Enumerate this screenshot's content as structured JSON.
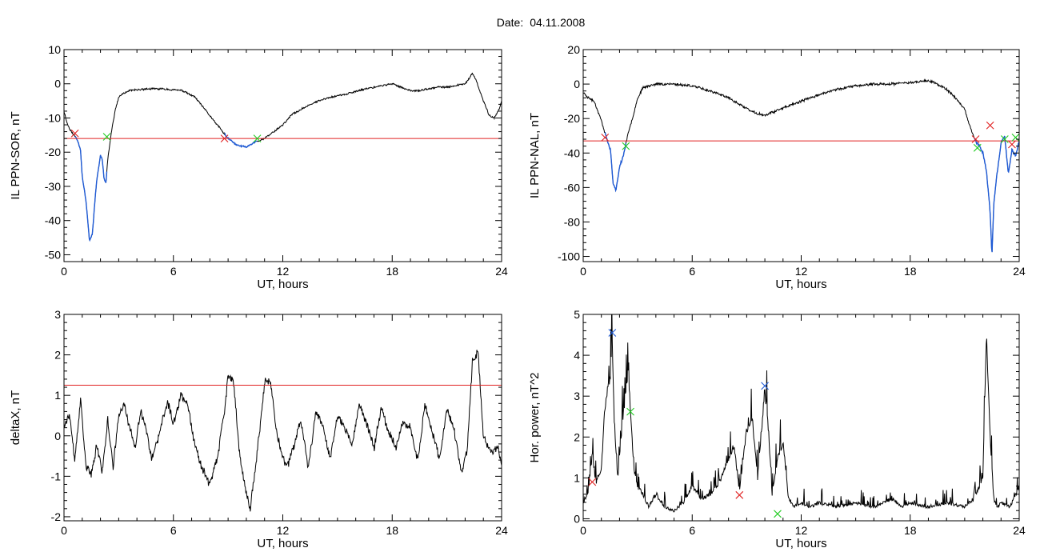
{
  "figure": {
    "date_label": "Date:",
    "date_value": "04.11.2008"
  },
  "colors": {
    "curve": "#000000",
    "highlight": "#1f5bd6",
    "threshold": "#e02020",
    "marker_red": "#e02020",
    "marker_green": "#22cc22",
    "marker_blue": "#1f5bd6"
  },
  "chart_data": [
    {
      "type": "line",
      "title": "",
      "xlabel": "UT, hours",
      "ylabel": "IL PPN-SOR, nT",
      "xlim": [
        0,
        24
      ],
      "ylim": [
        -52,
        10
      ],
      "xticks": [
        0,
        6,
        12,
        18,
        24
      ],
      "yticks": [
        -50,
        -40,
        -30,
        -20,
        -10,
        0,
        10
      ],
      "grid": false,
      "threshold": -16,
      "seed": 11,
      "noise": 0.45,
      "series": [
        {
          "values_x": [
            0,
            0.2,
            0.4,
            0.7,
            0.9,
            1.0,
            1.2,
            1.4,
            1.55,
            1.7,
            1.8,
            2.0,
            2.1,
            2.2,
            2.3,
            2.4,
            2.6,
            2.8,
            3.0,
            3.2,
            3.6,
            4.5,
            5.5,
            6.5,
            7.2,
            7.8,
            8.4,
            9.0,
            9.5,
            10.0,
            10.5,
            11.0,
            11.5,
            12.0,
            12.5,
            13.5,
            14.5,
            15.5,
            16.5,
            17.5,
            18.0,
            18.5,
            19.0,
            19.5,
            20.0,
            20.5,
            21.0,
            21.5,
            22.0,
            22.4,
            22.6,
            22.8,
            23.0,
            23.3,
            23.6,
            23.9,
            24.0
          ],
          "values_y": [
            -8,
            -12,
            -14,
            -16,
            -19,
            -27,
            -34,
            -46,
            -44,
            -34,
            -28,
            -21,
            -22,
            -28,
            -29,
            -22,
            -14,
            -8,
            -4,
            -3,
            -2,
            -1.5,
            -1.5,
            -2,
            -4,
            -8,
            -12,
            -16,
            -18,
            -18.5,
            -17,
            -16,
            -14,
            -12,
            -9,
            -6,
            -4,
            -3,
            -1.5,
            -0.5,
            0,
            -1,
            -2,
            -2,
            -1.5,
            -1,
            -1,
            -0.5,
            0,
            3,
            1,
            -2,
            -5,
            -9,
            -10,
            -7,
            -5
          ]
        }
      ],
      "highlight_ranges": [
        [
          0.6,
          2.35
        ],
        [
          8.8,
          10.6
        ]
      ],
      "markers": [
        {
          "x": 0.6,
          "y": -14.5,
          "color": "red"
        },
        {
          "x": 2.35,
          "y": -15.5,
          "color": "green"
        },
        {
          "x": 8.8,
          "y": -16,
          "color": "red"
        },
        {
          "x": 10.6,
          "y": -16,
          "color": "green"
        }
      ]
    },
    {
      "type": "line",
      "title": "",
      "xlabel": "UT, hours",
      "ylabel": "IL PPN-NAL, nT",
      "xlim": [
        0,
        24
      ],
      "ylim": [
        -103,
        20
      ],
      "xticks": [
        0,
        6,
        12,
        18,
        24
      ],
      "yticks": [
        -100,
        -80,
        -60,
        -40,
        -20,
        0,
        20
      ],
      "grid": false,
      "threshold": -33,
      "seed": 23,
      "noise": 1.2,
      "series": [
        {
          "values_x": [
            0,
            0.3,
            0.6,
            0.9,
            1.1,
            1.3,
            1.5,
            1.65,
            1.8,
            2.0,
            2.2,
            2.4,
            2.7,
            3.0,
            3.3,
            4.0,
            5.0,
            6.0,
            7.0,
            8.0,
            8.8,
            9.5,
            10.0,
            11.0,
            12.0,
            13.0,
            14.0,
            15.0,
            16.0,
            17.0,
            18.0,
            19.0,
            19.5,
            20.0,
            20.5,
            20.8,
            21.0,
            21.3,
            21.6,
            21.8,
            22.0,
            22.2,
            22.4,
            22.5,
            22.6,
            22.8,
            23.0,
            23.2,
            23.4,
            23.6,
            23.8,
            24.0
          ],
          "values_y": [
            -5,
            -8,
            -10,
            -18,
            -25,
            -32,
            -38,
            -58,
            -62,
            -48,
            -42,
            -32,
            -20,
            -8,
            -2,
            0,
            0,
            -1,
            -4,
            -8,
            -13,
            -17,
            -18,
            -14,
            -10,
            -6,
            -3,
            -1,
            0,
            0,
            1,
            2,
            0,
            -3,
            -8,
            -12,
            -15,
            -25,
            -33,
            -36,
            -40,
            -50,
            -75,
            -100,
            -70,
            -50,
            -34,
            -30,
            -52,
            -38,
            -42,
            -33
          ]
        }
      ],
      "highlight_ranges": [
        [
          1.2,
          2.35
        ],
        [
          21.5,
          24.0
        ]
      ],
      "markers": [
        {
          "x": 1.2,
          "y": -31,
          "color": "red"
        },
        {
          "x": 2.35,
          "y": -36,
          "color": "green"
        },
        {
          "x": 21.6,
          "y": -32,
          "color": "red"
        },
        {
          "x": 21.7,
          "y": -37,
          "color": "green"
        },
        {
          "x": 22.4,
          "y": -24,
          "color": "red"
        },
        {
          "x": 23.2,
          "y": -32,
          "color": "green"
        },
        {
          "x": 23.6,
          "y": -35,
          "color": "red"
        },
        {
          "x": 23.8,
          "y": -31,
          "color": "green"
        }
      ]
    },
    {
      "type": "line",
      "title": "",
      "xlabel": "UT, hours",
      "ylabel": "deltaX, nT",
      "xlim": [
        0,
        24
      ],
      "ylim": [
        -2.1,
        3
      ],
      "xticks": [
        0,
        6,
        12,
        18,
        24
      ],
      "yticks": [
        -2,
        -1,
        0,
        1,
        2,
        3
      ],
      "grid": false,
      "threshold": 1.25,
      "seed": 37,
      "noise": 0.18,
      "series": [
        {
          "values_x": [
            0,
            0.3,
            0.6,
            0.9,
            1.2,
            1.5,
            1.8,
            2.1,
            2.4,
            2.7,
            3.0,
            3.3,
            3.6,
            3.9,
            4.2,
            4.5,
            4.8,
            5.1,
            5.4,
            5.7,
            6.0,
            6.4,
            6.8,
            7.2,
            7.6,
            8.0,
            8.4,
            8.8,
            9.0,
            9.3,
            9.6,
            9.9,
            10.2,
            10.5,
            10.8,
            11.0,
            11.3,
            11.6,
            11.9,
            12.2,
            12.6,
            13.0,
            13.4,
            13.8,
            14.2,
            14.6,
            15.0,
            15.4,
            15.8,
            16.2,
            16.6,
            17.0,
            17.4,
            17.8,
            18.2,
            18.6,
            19.0,
            19.4,
            19.8,
            20.2,
            20.6,
            21.0,
            21.4,
            21.8,
            22.1,
            22.4,
            22.7,
            23.0,
            23.4,
            23.8,
            24.0
          ],
          "values_y": [
            0.3,
            0.5,
            -0.6,
            0.9,
            -0.7,
            -1.0,
            -0.2,
            -0.9,
            0.4,
            -0.8,
            0.5,
            0.8,
            0.2,
            -0.3,
            0.6,
            0.2,
            -0.6,
            -0.2,
            0.4,
            0.8,
            0.3,
            1.0,
            0.8,
            -0.3,
            -0.8,
            -1.2,
            -0.6,
            0.6,
            1.5,
            1.3,
            -0.3,
            -1.2,
            -1.8,
            -0.8,
            0.4,
            1.3,
            1.4,
            0.3,
            -0.4,
            -0.8,
            -0.3,
            0.4,
            -0.8,
            0.6,
            0.3,
            -0.6,
            0.5,
            0.2,
            -0.2,
            0.8,
            0.3,
            -0.3,
            0.7,
            0.1,
            -0.3,
            0.4,
            0.2,
            -0.6,
            0.8,
            0.1,
            -0.6,
            0.7,
            0.1,
            -0.9,
            -0.4,
            1.8,
            2.1,
            0.0,
            -0.4,
            -0.3,
            -0.8
          ]
        }
      ],
      "highlight_ranges": [],
      "markers": []
    },
    {
      "type": "line",
      "title": "",
      "xlabel": "UT, hours",
      "ylabel": "Hor. power, nT^2",
      "xlim": [
        0,
        24
      ],
      "ylim": [
        -0.05,
        5
      ],
      "xticks": [
        0,
        6,
        12,
        18,
        24
      ],
      "yticks": [
        0,
        1,
        2,
        3,
        4,
        5
      ],
      "grid": false,
      "threshold": null,
      "seed": 53,
      "noise": 0.35,
      "spiky": true,
      "series": [
        {
          "values_x": [
            0,
            0.3,
            0.5,
            0.7,
            1.0,
            1.2,
            1.5,
            1.6,
            1.7,
            1.9,
            2.2,
            2.5,
            2.6,
            2.8,
            3.0,
            3.3,
            3.6,
            4.0,
            4.5,
            5.0,
            5.5,
            6.0,
            6.5,
            7.0,
            7.5,
            8.0,
            8.3,
            8.6,
            9.0,
            9.3,
            9.6,
            10.0,
            10.2,
            10.4,
            10.7,
            11.0,
            11.3,
            11.6,
            12.0,
            12.5,
            13.0,
            14.0,
            15.0,
            16.0,
            17.0,
            17.5,
            18.0,
            19.0,
            20.0,
            21.0,
            21.5,
            22.0,
            22.2,
            22.4,
            22.6,
            22.8,
            23.0,
            23.5,
            24.0
          ],
          "values_y": [
            0.4,
            0.7,
            1.6,
            0.9,
            1.2,
            2.8,
            3.6,
            4.5,
            2.5,
            1.0,
            2.6,
            3.6,
            2.6,
            1.2,
            0.8,
            0.6,
            0.3,
            0.6,
            0.3,
            0.2,
            0.4,
            0.8,
            0.5,
            0.6,
            0.9,
            1.5,
            1.8,
            0.7,
            2.2,
            2.5,
            1.0,
            3.2,
            2.2,
            0.6,
            1.5,
            1.9,
            0.5,
            0.3,
            0.4,
            0.3,
            0.4,
            0.3,
            0.4,
            0.3,
            0.5,
            0.3,
            0.4,
            0.3,
            0.4,
            0.3,
            0.5,
            1.0,
            4.6,
            2.0,
            0.5,
            0.3,
            0.4,
            0.3,
            0.8
          ]
        }
      ],
      "highlight_ranges": [],
      "markers": [
        {
          "x": 0.5,
          "y": 0.9,
          "color": "red"
        },
        {
          "x": 1.6,
          "y": 4.55,
          "color": "blue"
        },
        {
          "x": 2.6,
          "y": 2.62,
          "color": "green"
        },
        {
          "x": 8.6,
          "y": 0.58,
          "color": "red"
        },
        {
          "x": 10.0,
          "y": 3.25,
          "color": "blue"
        },
        {
          "x": 10.7,
          "y": 0.12,
          "color": "green"
        }
      ]
    }
  ]
}
